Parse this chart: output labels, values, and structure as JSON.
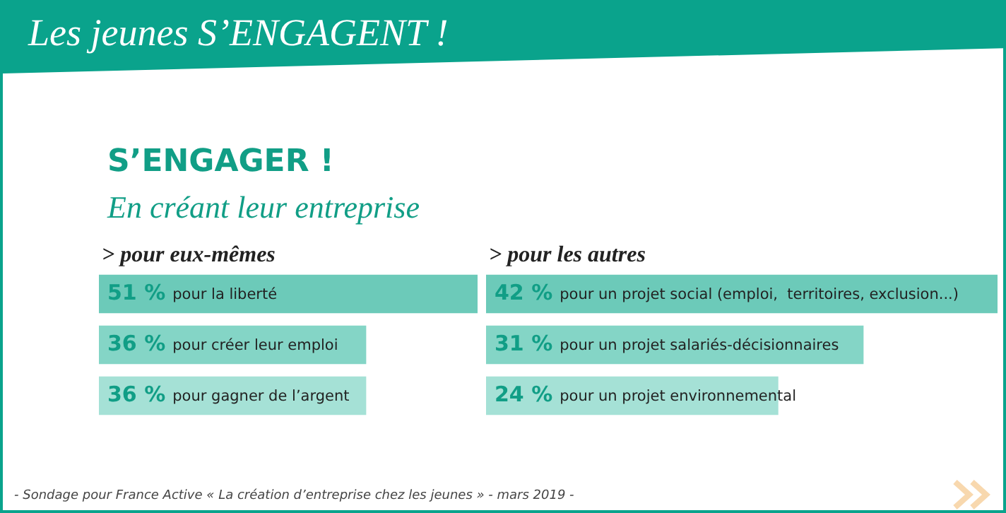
{
  "chart_data": [
    {
      "type": "other",
      "title": "Les jeunes S’ENGAGENT !",
      "subtitle": "S’ENGAGER !",
      "annotations": [
        "En créant leur entreprise",
        "- Sondage pour France Active « La création d’entreprise chez les jeunes » - mars 2019 -"
      ]
    },
    {
      "type": "bar",
      "orientation": "horizontal",
      "title": "> pour eux-mêmes",
      "categories": [
        "pour la liberté",
        "pour créer leur emploi",
        "pour gagner de l’argent"
      ],
      "values": [
        51,
        36,
        36
      ],
      "colors": [
        "#6ccab9",
        "#84d5c6",
        "#a5e1d6"
      ],
      "value_labels": [
        "51 %",
        "36 %",
        "36 %"
      ]
    },
    {
      "type": "bar",
      "orientation": "horizontal",
      "title": "> pour les autres",
      "categories": [
        "pour un projet social (emploi,  territoires, exclusion...)",
        "pour un projet salariés-décisionnaires",
        "pour un projet environnemental"
      ],
      "values": [
        42,
        31,
        24
      ],
      "colors": [
        "#6ccab9",
        "#84d5c6",
        "#a5e1d6"
      ],
      "value_labels": [
        "42 %",
        "31 %",
        "24 %"
      ]
    }
  ]
}
